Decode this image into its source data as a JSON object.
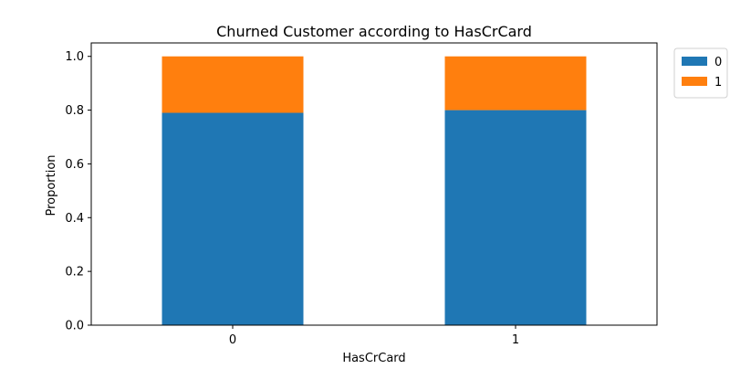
{
  "chart_data": {
    "type": "bar",
    "stacked": true,
    "title": "Churned Customer according to HasCrCard",
    "xlabel": "HasCrCard",
    "ylabel": "Proportion",
    "categories": [
      "0",
      "1"
    ],
    "series": [
      {
        "name": "0",
        "color": "#1f77b4",
        "values": [
          0.79,
          0.8
        ]
      },
      {
        "name": "1",
        "color": "#ff7f0e",
        "values": [
          0.21,
          0.2
        ]
      }
    ],
    "ylim": [
      0,
      1.05
    ],
    "yticks": [
      0.0,
      0.2,
      0.4,
      0.6,
      0.8,
      1.0
    ],
    "ytick_labels": [
      "0.0",
      "0.2",
      "0.4",
      "0.6",
      "0.8",
      "1.0"
    ],
    "grid": false,
    "legend_position": "outside-top-right"
  }
}
